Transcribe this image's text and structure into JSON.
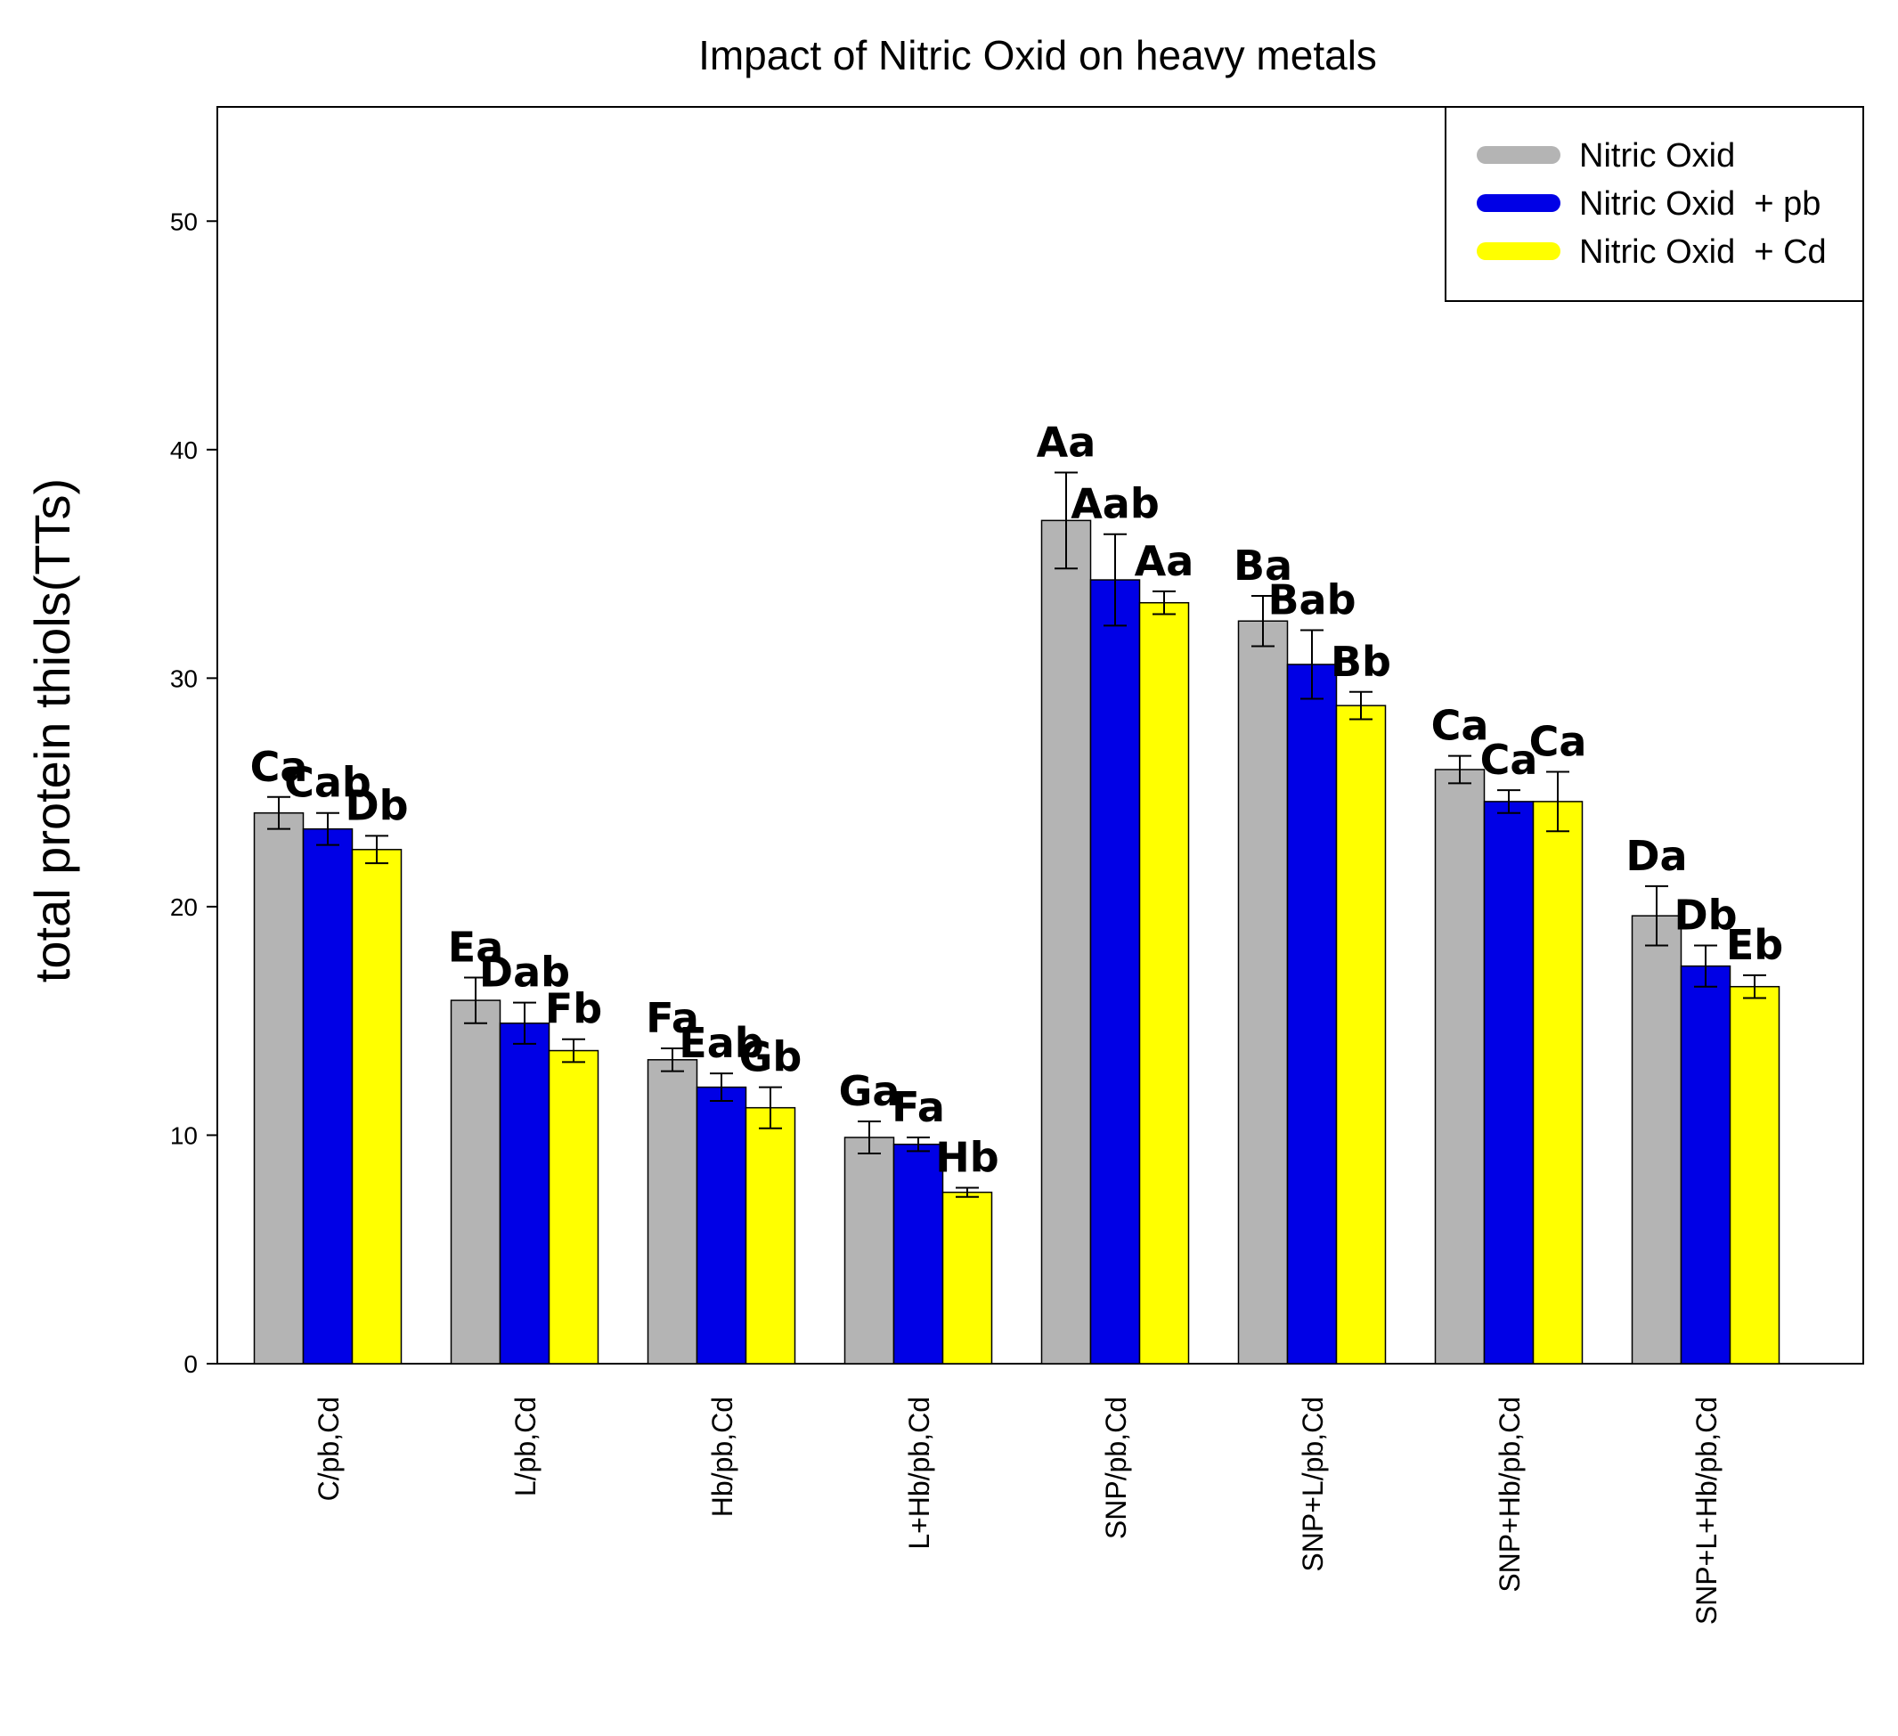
{
  "chart_data": {
    "type": "bar",
    "title": "Impact of Nitric Oxid on heavy metals",
    "xlabel": "",
    "ylabel": "total protein thiols(TTs)",
    "ylim": [
      0,
      55
    ],
    "yticks": [
      0,
      10,
      20,
      30,
      40,
      50
    ],
    "grid": false,
    "legend_position": "top-right",
    "categories": [
      "C/pb,Cd",
      "L/pb,Cd",
      "Hb/pb,Cd",
      "L+Hb/pb,Cd",
      "SNP/pb,Cd",
      "SNP+L/pb,Cd",
      "SNP+Hb/pb,Cd",
      "SNP+L+Hb/pb,Cd"
    ],
    "series": [
      {
        "name": "Nitric Oxid",
        "color": "#b4b4b4",
        "values": [
          24.1,
          15.9,
          13.3,
          9.9,
          36.9,
          32.5,
          26.0,
          19.6
        ],
        "errors": [
          0.7,
          1.0,
          0.5,
          0.7,
          2.1,
          1.1,
          0.6,
          1.3
        ],
        "labels": [
          "Ca",
          "Ea",
          "Fa",
          "Ga",
          "Aa",
          "Ba",
          "Ca",
          "Da"
        ]
      },
      {
        "name": "Nitric Oxid  + pb",
        "color": "#0000e6",
        "values": [
          23.4,
          14.9,
          12.1,
          9.6,
          34.3,
          30.6,
          24.6,
          17.4
        ],
        "errors": [
          0.7,
          0.9,
          0.6,
          0.3,
          2.0,
          1.5,
          0.5,
          0.9
        ],
        "labels": [
          "Cab",
          "Dab",
          "Eab",
          "Fa",
          "Aab",
          "Bab",
          "Ca",
          "Db"
        ]
      },
      {
        "name": "Nitric Oxid  + Cd",
        "color": "#ffff00",
        "values": [
          22.5,
          13.7,
          11.2,
          7.5,
          33.3,
          28.8,
          24.6,
          16.5
        ],
        "errors": [
          0.6,
          0.5,
          0.9,
          0.2,
          0.5,
          0.6,
          1.3,
          0.5
        ],
        "labels": [
          "Db",
          "Fb",
          "Gb",
          "Hb",
          "Aa",
          "Bb",
          "Ca",
          "Eb"
        ]
      }
    ]
  }
}
